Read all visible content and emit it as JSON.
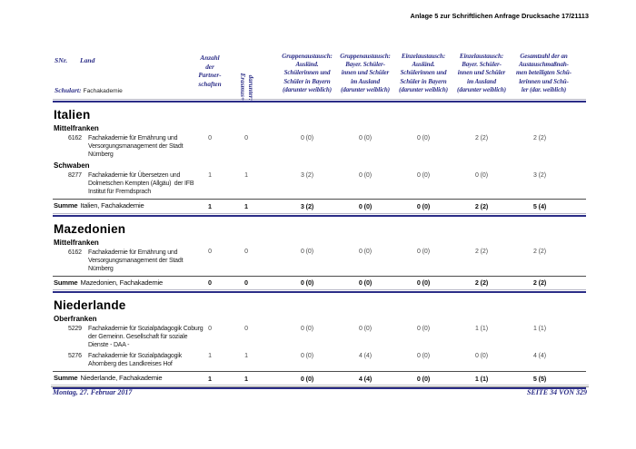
{
  "page": {
    "top_right_header": "Anlage 5 zur Schriftlichen Anfrage Drucksache 17/21113",
    "footer_left": "Montag, 27. Februar 2017",
    "footer_right": "SEITE 34 VON 329"
  },
  "table": {
    "header": {
      "snr_label": "SNr.",
      "land_label": "Land",
      "schulart_label": "Schulart:",
      "schulart_value": "Fachakademie",
      "partnerships_label": "Anzahl\nder\nPartner-\nschaften",
      "erasmus_label": "darunter:\nErasmus+",
      "columns": [
        "Gruppenaustausch:\nAusländ.\nSchülerinnen und\nSchüler in Bayern\n(darunter weiblich)",
        "Gruppenaustausch:\nBayer. Schüler-\ninnen und Schüler\nim Ausland\n(darunter weiblich)",
        "Einzelaustausch:\nAusländ.\nSchülerinnen und\nSchüler in Bayern\n(darunter weiblich)",
        "Einzelaustausch:\nBayer. Schüler-\ninnen und Schüler\nim Ausland\n(darunter weiblich)",
        "Gesamtzahl der an\nAustauschmaßnah-\nmen beteiligten Schü-\nlerinnen und Schü-\nler (dar. weiblich)"
      ]
    },
    "sections": [
      {
        "country": "Italien",
        "groups": [
          {
            "region": "Mittelfranken",
            "rows": [
              {
                "snr": "6162",
                "name": "Fachakademie für Ernährung und\nVersorgungsmanagement der Stadt\nNürnberg",
                "values": [
                  "0",
                  "0",
                  "0 (0)",
                  "0 (0)",
                  "0 (0)",
                  "2 (2)",
                  "2 (2)"
                ]
              }
            ]
          },
          {
            "region": "Schwaben",
            "rows": [
              {
                "snr": "8277",
                "name": "Fachakademie für Übersetzen und\nDolmetschen Kempten (Allgäu)  der IFB\nInstitut für Fremdsprach",
                "values": [
                  "1",
                  "1",
                  "3 (2)",
                  "0 (0)",
                  "0 (0)",
                  "0 (0)",
                  "3 (2)"
                ]
              }
            ]
          }
        ],
        "summe": {
          "label": "Summe",
          "text": "Italien, Fachakademie",
          "values": [
            "1",
            "1",
            "3 (2)",
            "0 (0)",
            "0 (0)",
            "2 (2)",
            "5 (4)"
          ]
        }
      },
      {
        "country": "Mazedonien",
        "groups": [
          {
            "region": "Mittelfranken",
            "rows": [
              {
                "snr": "6162",
                "name": "Fachakademie für Ernährung und\nVersorgungsmanagement der Stadt\nNürnberg",
                "values": [
                  "0",
                  "0",
                  "0 (0)",
                  "0 (0)",
                  "0 (0)",
                  "2 (2)",
                  "2 (2)"
                ]
              }
            ]
          }
        ],
        "summe": {
          "label": "Summe",
          "text": "Mazedonien, Fachakademie",
          "values": [
            "0",
            "0",
            "0 (0)",
            "0 (0)",
            "0 (0)",
            "2 (2)",
            "2 (2)"
          ]
        }
      },
      {
        "country": "Niederlande",
        "groups": [
          {
            "region": "Oberfranken",
            "rows": [
              {
                "snr": "5229",
                "name": "Fachakademie für Sozialpädagogik Coburg\nder Gemeinn. Gesellschaft für soziale\nDienste - DAA -",
                "values": [
                  "0",
                  "0",
                  "0 (0)",
                  "0 (0)",
                  "0 (0)",
                  "1 (1)",
                  "1 (1)"
                ]
              },
              {
                "snr": "5276",
                "name": "Fachakademie für Sozialpädagogik\nAhornberg des Landkreises Hof",
                "values": [
                  "1",
                  "1",
                  "0 (0)",
                  "4 (4)",
                  "0 (0)",
                  "0 (0)",
                  "4 (4)"
                ]
              }
            ]
          }
        ],
        "summe": {
          "label": "Summe",
          "text": "Niederlande, Fachakademie",
          "values": [
            "1",
            "1",
            "0 (0)",
            "4 (4)",
            "0 (0)",
            "1 (1)",
            "5 (5)"
          ]
        }
      }
    ]
  },
  "colors": {
    "navy": "#2b2d87",
    "rule_light": "#b6b6c6"
  }
}
